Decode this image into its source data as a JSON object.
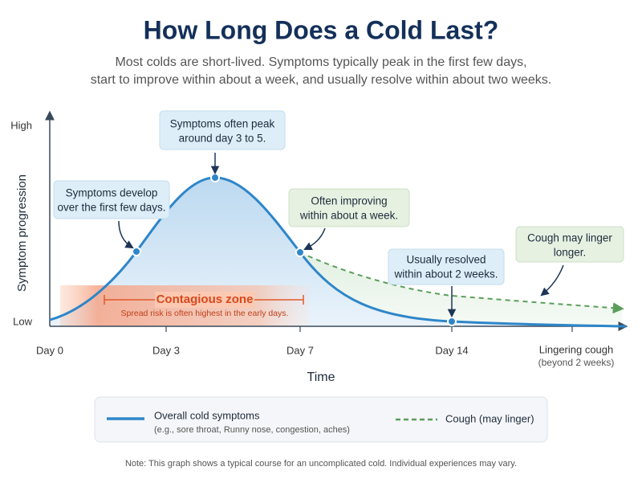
{
  "header": {
    "title": "How Long Does a Cold Last?",
    "subtitle": [
      "Most colds are short-lived. Symptoms typically peak in the first few days,",
      "start to improve within about a week, and usually resolve within about two weeks."
    ]
  },
  "axes": {
    "y_label": "Symptom progression",
    "y_high": "High",
    "y_low": "Low",
    "x_label": "Time",
    "x_ticks": [
      "Day 0",
      "Day 3",
      "Day 7",
      "Day 14",
      "Lingering cough"
    ],
    "x_tick_note": "(beyond 2 weeks)"
  },
  "callouts": [
    {
      "lines": [
        "Symptoms develop",
        "over the first few days."
      ]
    },
    {
      "lines": [
        "Symptoms often peak",
        "around day 3 to 5."
      ]
    },
    {
      "lines": [
        "Often improving",
        "within about a week."
      ]
    },
    {
      "lines": [
        "Usually resolved",
        "within about 2 weeks."
      ]
    },
    {
      "lines": [
        "Cough may linger",
        "longer."
      ]
    }
  ],
  "contagious": {
    "title": "Contagious zone",
    "note": "Spread risk is often highest in the early days."
  },
  "legend": [
    {
      "label": "Overall cold symptoms",
      "note": "(e.g., sore throat, Runny nose, congestion, aches)"
    },
    {
      "label": "Cough (may linger)"
    }
  ],
  "footnote": "Note: This graph shows a typical course for an uncomplicated cold. Individual experiences may vary."
}
